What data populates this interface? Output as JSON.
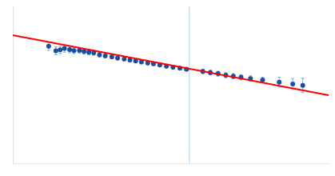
{
  "chart_data": {
    "type": "scatter",
    "xlim": [
      -0.05,
      1.05
    ],
    "ylim": [
      -0.1,
      1.1
    ],
    "tick_labels": false,
    "grid": false,
    "vlines": [
      {
        "x": 0.565,
        "color": "#b0cfe8"
      }
    ],
    "series": [
      {
        "type": "line",
        "color": "#ff0000",
        "x": [
          -0.05,
          1.05
        ],
        "values": [
          0.88,
          0.42
        ]
      },
      {
        "type": "scatter",
        "marker": "circle",
        "color": "#1a4fa0",
        "error_color": "#7ab0d8",
        "x": [
          0.075,
          0.1,
          0.115,
          0.13,
          0.148,
          0.163,
          0.182,
          0.198,
          0.215,
          0.232,
          0.252,
          0.272,
          0.295,
          0.315,
          0.338,
          0.358,
          0.378,
          0.398,
          0.42,
          0.44,
          0.462,
          0.485,
          0.508,
          0.532,
          0.555,
          0.612,
          0.638,
          0.665,
          0.692,
          0.718,
          0.745,
          0.778,
          0.82,
          0.878,
          0.925,
          0.96
        ],
        "values": [
          0.795,
          0.76,
          0.768,
          0.778,
          0.77,
          0.762,
          0.764,
          0.756,
          0.75,
          0.745,
          0.73,
          0.722,
          0.714,
          0.705,
          0.698,
          0.69,
          0.682,
          0.675,
          0.667,
          0.66,
          0.651,
          0.643,
          0.635,
          0.627,
          0.619,
          0.602,
          0.594,
          0.585,
          0.574,
          0.566,
          0.558,
          0.548,
          0.536,
          0.52,
          0.506,
          0.495
        ],
        "yerr": [
          0.032,
          0.03,
          0.028,
          0.028,
          0.025,
          0.024,
          0.022,
          0.021,
          0.02,
          0.019,
          0.018,
          0.017,
          0.016,
          0.016,
          0.015,
          0.015,
          0.014,
          0.014,
          0.014,
          0.013,
          0.013,
          0.013,
          0.013,
          0.013,
          0.013,
          0.018,
          0.018,
          0.019,
          0.02,
          0.02,
          0.02,
          0.021,
          0.022,
          0.038,
          0.042,
          0.055
        ]
      }
    ]
  }
}
